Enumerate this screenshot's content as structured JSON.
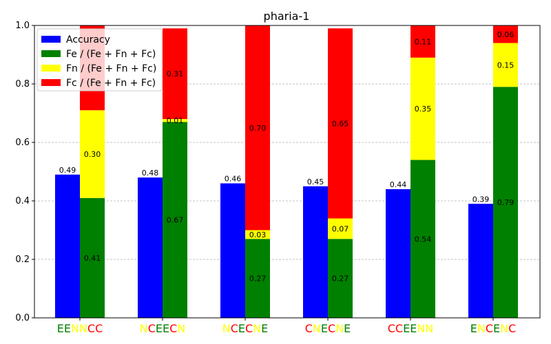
{
  "chart_data": {
    "type": "bar",
    "title": "pharia-1",
    "xlabel": "",
    "ylabel": "",
    "ylim": [
      0,
      1.0
    ],
    "yticks": [
      "0.0",
      "0.2",
      "0.4",
      "0.6",
      "0.8",
      "1.0"
    ],
    "ytick_values": [
      0.0,
      0.2,
      0.4,
      0.6,
      0.8,
      1.0
    ],
    "grid": "y-dashed",
    "legend_position": "top-left",
    "categories": [
      "EENNCC",
      "NCEECN",
      "NCECNE",
      "CNECNE",
      "CCEENN",
      "ENCENC"
    ],
    "letter_colors": {
      "E": "#008000",
      "N": "#ffff00",
      "C": "#ff0000"
    },
    "series": [
      {
        "name": "Accuracy",
        "color": "#0000ff",
        "values": [
          0.49,
          0.48,
          0.46,
          0.45,
          0.44,
          0.39
        ],
        "labels": [
          "0.49",
          "0.48",
          "0.46",
          "0.45",
          "0.44",
          "0.39"
        ]
      },
      {
        "name": "Fe / (Fe + Fn + Fc)",
        "color": "#008000",
        "values": [
          0.41,
          0.67,
          0.27,
          0.27,
          0.54,
          0.79
        ],
        "labels": [
          "0.41",
          "0.67",
          "0.27",
          "0.27",
          "0.54",
          "0.79"
        ]
      },
      {
        "name": "Fn / (Fe + Fn + Fc)",
        "color": "#ffff00",
        "values": [
          0.3,
          0.01,
          0.03,
          0.07,
          0.35,
          0.15
        ],
        "labels": [
          "0.30",
          "0.01",
          "0.03",
          "0.07",
          "0.35",
          "0.15"
        ]
      },
      {
        "name": "Fc / (Fe + Fn + Fc)",
        "color": "#ff0000",
        "values": [
          0.29,
          0.31,
          0.7,
          0.65,
          0.11,
          0.06
        ],
        "labels": [
          "",
          "0.31",
          "0.70",
          "0.65",
          "0.11",
          "0.06"
        ]
      }
    ]
  }
}
